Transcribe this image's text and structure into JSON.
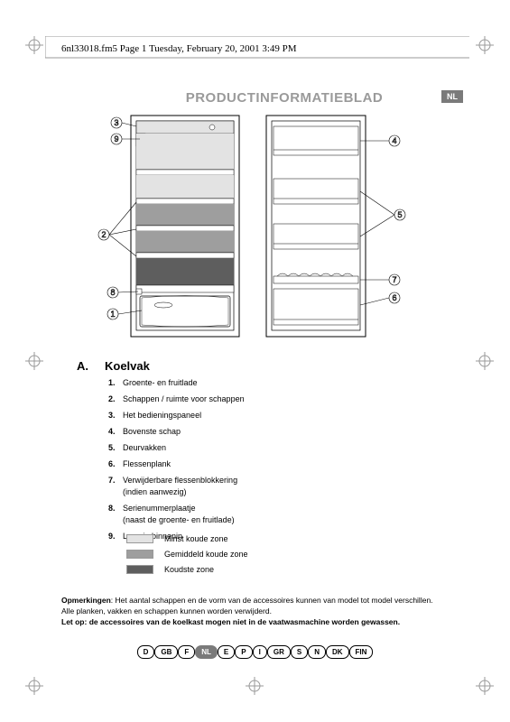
{
  "header": {
    "file_stamp": "6nl33018.fm5  Page 1  Tuesday, February 20, 2001  3:49 PM"
  },
  "title": "PRODUCTINFORMATIEBLAD",
  "lang_badge": "NL",
  "section": {
    "letter": "A.",
    "title": "Koelvak"
  },
  "parts": [
    {
      "num": "1.",
      "label": "Groente- en fruitlade"
    },
    {
      "num": "2.",
      "label": "Schappen / ruimte voor schappen"
    },
    {
      "num": "3.",
      "label": "Het bedieningspaneel"
    },
    {
      "num": "4.",
      "label": "Bovenste schap"
    },
    {
      "num": "5.",
      "label": "Deurvakken"
    },
    {
      "num": "6.",
      "label": "Flessenplank"
    },
    {
      "num": "7.",
      "label": "Verwijderbare flessenblokkering",
      "sub": "(indien aanwezig)"
    },
    {
      "num": "8.",
      "label": "Serienummerplaatje",
      "sub": "(naast de groente- en fruitlade)"
    },
    {
      "num": "9.",
      "label": "Lampje binnenin"
    }
  ],
  "zones": [
    {
      "color": "#e3e3e3",
      "label": "Minst koude zone"
    },
    {
      "color": "#9e9e9e",
      "label": "Gemiddeld koude zone"
    },
    {
      "color": "#5e5e5e",
      "label": "Koudste zone"
    }
  ],
  "notes": {
    "prefix": "Opmerkingen",
    "line1": ": Het aantal schappen en de vorm van de accessoires kunnen van model tot model verschillen.",
    "line2": "Alle planken, vakken en schappen kunnen worden verwijderd.",
    "line3": "Let op: de accessoires van de koelkast mogen niet in de vaatwasmachine worden gewassen."
  },
  "lang_pills": [
    "D",
    "GB",
    "F",
    "NL",
    "E",
    "P",
    "I",
    "GR",
    "S",
    "N",
    "DK",
    "FIN"
  ],
  "lang_active": "NL",
  "diagram": {
    "callouts": [
      "1",
      "2",
      "3",
      "4",
      "5",
      "6",
      "7",
      "8",
      "9"
    ],
    "shelf_colors": {
      "top": "#e3e3e3",
      "mid": "#9e9e9e",
      "bottom_band": "#5e5e5e",
      "drawer": "#ffffff"
    },
    "stroke": "#000000"
  },
  "crop_mark_color": "#9a9a9a"
}
